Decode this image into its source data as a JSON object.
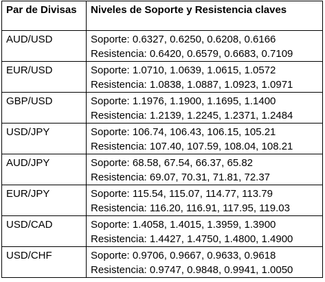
{
  "header": {
    "pair": "Par de Divisas",
    "levels": "Niveles de Soporte y Resistencia claves"
  },
  "rows": [
    {
      "pair": "AUD/USD",
      "support": "Soporte: 0.6327, 0.6250, 0.6208, 0.6166",
      "resistance": "Resistencia: 0.6420, 0.6579, 0.6683, 0.7109"
    },
    {
      "pair": "EUR/USD",
      "support": "Soporte: 1.0710, 1.0639, 1.0615, 1.0572",
      "resistance": "Resistencia: 1.0838, 1.0887, 1.0923, 1.0971"
    },
    {
      "pair": "GBP/USD",
      "support": "Soporte: 1.1976, 1.1900, 1.1695, 1.1400",
      "resistance": "Resistencia: 1.2139, 1.2245, 1.2371, 1.2484"
    },
    {
      "pair": "USD/JPY",
      "support": "Soporte: 106.74, 106.43, 106.15, 105.21",
      "resistance": "Resistencia: 107.40, 107.59, 108.04, 108.21"
    },
    {
      "pair": "AUD/JPY",
      "support": "Soporte: 68.58, 67.54, 66.37, 65.82",
      "resistance": "Resistencia: 69.07, 70.31, 71.81, 72.37"
    },
    {
      "pair": "EUR/JPY",
      "support": "Soporte: 115.54, 115.07, 114.77, 113.79",
      "resistance": "Resistencia: 116.20, 116.91, 117.95, 119.03"
    },
    {
      "pair": "USD/CAD",
      "support": "Soporte: 1.4058, 1.4015, 1.3959, 1.3900",
      "resistance": "Resistencia: 1.4427, 1.4750, 1.4800, 1.4900"
    },
    {
      "pair": "USD/CHF",
      "support": "Soporte: 0.9706, 0.9667, 0.9633, 0.9618",
      "resistance": "Resistencia: 0.9747, 0.9848, 0.9941, 1.0050"
    }
  ]
}
